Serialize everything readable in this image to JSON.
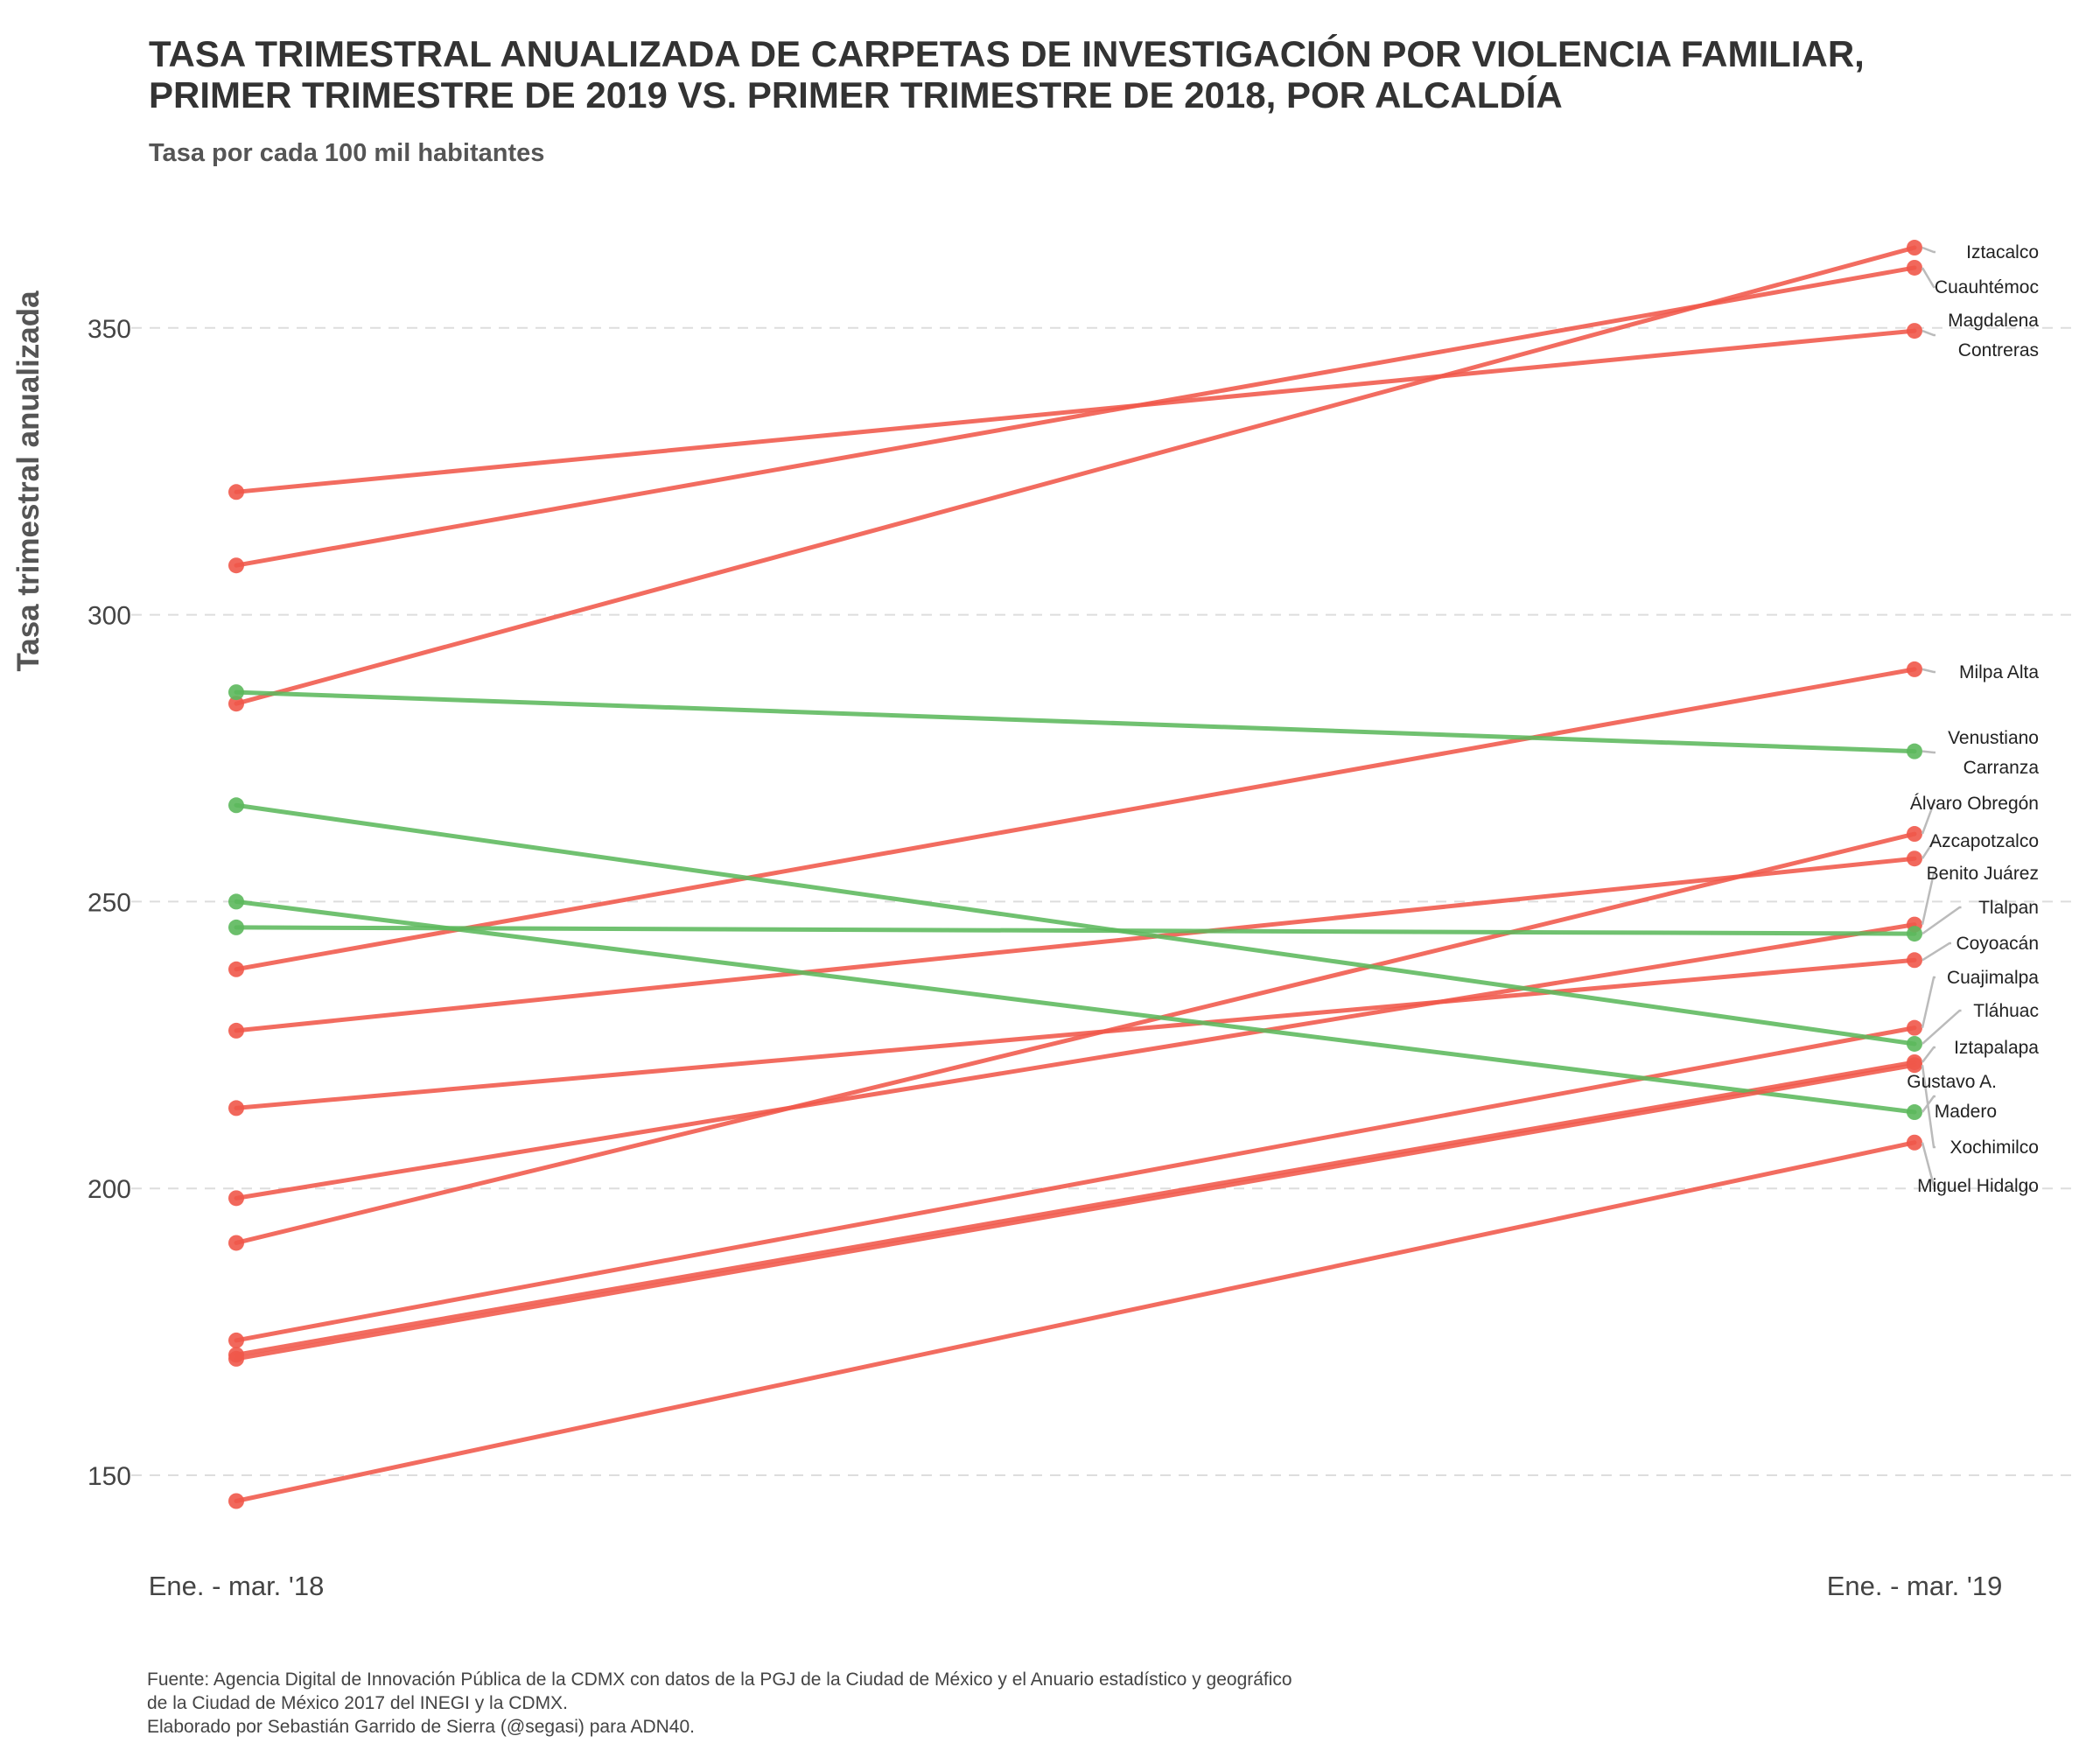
{
  "chart_data": {
    "type": "line",
    "title_lines": [
      "TASA TRIMESTRAL ANUALIZADA DE CARPETAS DE INVESTIGACIÓN POR VIOLENCIA FAMILIAR,",
      "PRIMER TRIMESTRE DE 2019 VS. PRIMER TRIMESTRE DE 2018, POR ALCALDÍA"
    ],
    "subtitle": "Tasa por cada 100 mil habitantes",
    "xlabel": "",
    "ylabel": "Tasa trimestral anualizada",
    "x": [
      "Ene. - mar. '18",
      "Ene. - mar. '19"
    ],
    "ylim": [
      136,
      372
    ],
    "yticks": [
      150,
      200,
      250,
      300,
      350
    ],
    "grid": true,
    "legend": "none",
    "colors": {
      "increase": "#f0584a",
      "decrease": "#5cb85c"
    },
    "series": [
      {
        "name": "Iztacalco",
        "values": [
          284.5,
          364.0
        ]
      },
      {
        "name": "Cuauhtémoc",
        "values": [
          308.6,
          360.5
        ]
      },
      {
        "name": "Magdalena Contreras",
        "values": [
          321.4,
          349.5
        ]
      },
      {
        "name": "Milpa Alta",
        "values": [
          238.2,
          290.5
        ]
      },
      {
        "name": "Venustiano Carranza",
        "values": [
          286.5,
          276.2
        ]
      },
      {
        "name": "Álvaro Obregón",
        "values": [
          190.5,
          261.8
        ]
      },
      {
        "name": "Azcapotzalco",
        "values": [
          227.5,
          257.5
        ]
      },
      {
        "name": "Benito Juárez",
        "values": [
          198.3,
          246.0
        ]
      },
      {
        "name": "Tlalpan",
        "values": [
          245.5,
          244.4
        ]
      },
      {
        "name": "Coyoacán",
        "values": [
          214.0,
          239.8
        ]
      },
      {
        "name": "Cuajimalpa",
        "values": [
          173.5,
          228.0
        ]
      },
      {
        "name": "Tláhuac",
        "values": [
          266.8,
          225.2
        ]
      },
      {
        "name": "Iztapalapa",
        "values": [
          171.0,
          222.0
        ]
      },
      {
        "name": "Gustavo A. Madero",
        "values": [
          250.0,
          213.3
        ]
      },
      {
        "name": "Xochimilco",
        "values": [
          170.3,
          221.5
        ]
      },
      {
        "name": "Miguel Hidalgo",
        "values": [
          145.5,
          208.0
        ]
      }
    ],
    "annotations": [
      {
        "lines": [
          "Iztacalco"
        ],
        "series": "Iztacalco"
      },
      {
        "lines": [
          "Cuauhtémoc"
        ],
        "series": "Cuauhtémoc"
      },
      {
        "lines": [
          "Magdalena",
          "Contreras"
        ],
        "series": "Magdalena Contreras"
      },
      {
        "lines": [
          "Milpa Alta"
        ],
        "series": "Milpa Alta"
      },
      {
        "lines": [
          "Venustiano",
          "Carranza"
        ],
        "series": "Venustiano Carranza"
      },
      {
        "lines": [
          "Álvaro Obregón"
        ],
        "series": "Álvaro Obregón"
      },
      {
        "lines": [
          "Azcapotzalco"
        ],
        "series": "Azcapotzalco"
      },
      {
        "lines": [
          "Benito Juárez"
        ],
        "series": "Benito Juárez"
      },
      {
        "lines": [
          "Tlalpan"
        ],
        "series": "Tlalpan"
      },
      {
        "lines": [
          "Coyoacán"
        ],
        "series": "Coyoacán"
      },
      {
        "lines": [
          "Cuajimalpa"
        ],
        "series": "Cuajimalpa"
      },
      {
        "lines": [
          "Tláhuac"
        ],
        "series": "Tláhuac"
      },
      {
        "lines": [
          "Iztapalapa"
        ],
        "series": "Iztapalapa"
      },
      {
        "lines": [
          "Gustavo A.",
          "Madero"
        ],
        "series": "Gustavo A. Madero"
      },
      {
        "lines": [
          "Xochimilco"
        ],
        "series": "Xochimilco"
      },
      {
        "lines": [
          "Miguel Hidalgo"
        ],
        "series": "Miguel Hidalgo"
      }
    ],
    "caption_lines": [
      "Fuente: Agencia Digital de Innovación Pública de la CDMX con datos de la PGJ de la Ciudad de México y el Anuario estadístico y geográfico",
      "de la Ciudad de México 2017 del INEGI y la CDMX.",
      "Elaborado por Sebastián Garrido de Sierra (@segasi) para ADN40."
    ]
  }
}
